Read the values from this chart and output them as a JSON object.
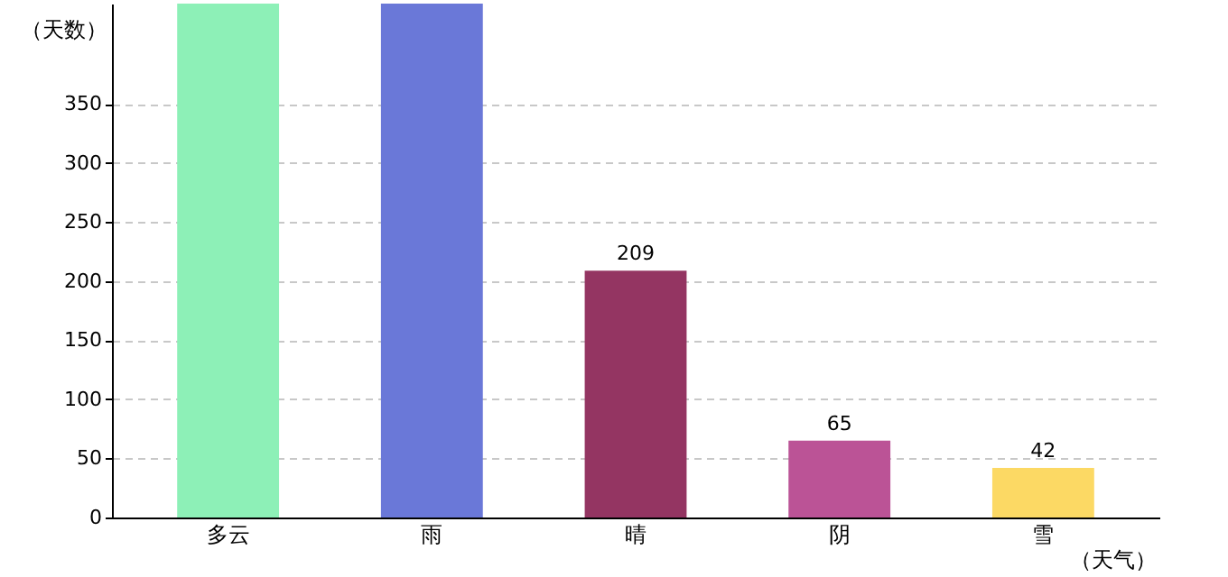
{
  "chart_data": {
    "type": "bar",
    "xlabel": "（天气）",
    "ylabel": "（天数）",
    "categories": [
      "多云",
      "雨",
      "晴",
      "阴",
      "雪"
    ],
    "values": [
      435,
      435,
      209,
      65,
      42
    ],
    "colors": [
      "#8df0b7",
      "#6a78d8",
      "#943562",
      "#bb5396",
      "#fcd964"
    ],
    "value_labels": [
      null,
      null,
      "209",
      "65",
      "42"
    ],
    "ylim": [
      0,
      435
    ],
    "yticks": [
      0,
      50,
      100,
      150,
      200,
      250,
      300,
      350
    ],
    "grid": "y"
  }
}
